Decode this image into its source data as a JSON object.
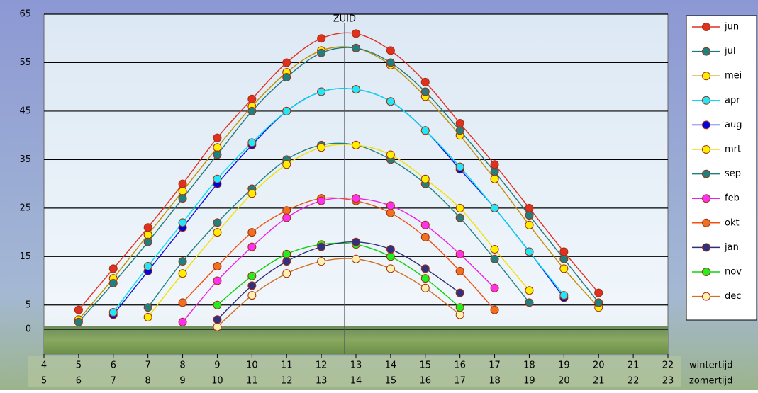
{
  "chart_data": {
    "type": "line",
    "x": [
      5,
      6,
      7,
      8,
      9,
      10,
      11,
      12,
      13,
      14,
      15,
      16,
      17,
      18,
      19,
      20
    ],
    "series": [
      {
        "name": "jun",
        "color": "#e03020",
        "marker": "#e03020",
        "values": [
          4,
          12.5,
          21,
          30,
          39.5,
          47.5,
          55,
          60,
          61,
          57.5,
          51,
          42.5,
          34,
          25,
          16,
          7.5
        ]
      },
      {
        "name": "jul",
        "color": "#207878",
        "marker": "#208080",
        "values": [
          1.5,
          9.5,
          18,
          27,
          36,
          45,
          52,
          57,
          58,
          55,
          49,
          41,
          32.5,
          23.5,
          14.5,
          5.5
        ]
      },
      {
        "name": "mei",
        "color": "#c09000",
        "marker": "#ffee00",
        "values": [
          2,
          10.5,
          19.5,
          28.5,
          37.5,
          46,
          53,
          57.5,
          58,
          54.5,
          48,
          40,
          31,
          21.5,
          12.5,
          4.5
        ]
      },
      {
        "name": "apr",
        "color": "#00e0f0",
        "marker": "#20e8f8",
        "values": [
          null,
          3.5,
          13,
          22,
          31,
          38.5,
          45,
          49,
          49.5,
          47,
          41,
          33.5,
          25,
          16,
          7,
          null
        ]
      },
      {
        "name": "aug",
        "color": "#1010e0",
        "marker": "#0000e0",
        "values": [
          null,
          3,
          12,
          21,
          30,
          38,
          45,
          49,
          49.5,
          47,
          41,
          33,
          25,
          16,
          6.5,
          null
        ]
      },
      {
        "name": "mrt",
        "color": "#f0e000",
        "marker": "#ffee00",
        "values": [
          null,
          null,
          2.5,
          11.5,
          20,
          28,
          34,
          37.5,
          38,
          36,
          31,
          25,
          16.5,
          8,
          null,
          null
        ]
      },
      {
        "name": "sep",
        "color": "#208080",
        "marker": "#208080",
        "values": [
          null,
          null,
          4.5,
          14,
          22,
          29,
          35,
          38,
          38,
          35,
          30,
          23,
          14.5,
          5.5,
          null,
          null
        ]
      },
      {
        "name": "feb",
        "color": "#f020e0",
        "marker": "#ff30f0",
        "values": [
          null,
          null,
          null,
          1.5,
          10,
          17,
          23,
          26.5,
          27,
          25.5,
          21.5,
          15.5,
          8.5,
          null,
          null,
          null
        ]
      },
      {
        "name": "okt",
        "color": "#f05010",
        "marker": "#f07020",
        "values": [
          null,
          null,
          null,
          5.5,
          13,
          20,
          24.5,
          27,
          26.5,
          24,
          19,
          12,
          4,
          null,
          null,
          null
        ]
      },
      {
        "name": "jan",
        "color": "#303070",
        "marker": "#303080",
        "values": [
          null,
          null,
          null,
          null,
          2,
          9,
          14,
          17,
          18,
          16.5,
          12.5,
          7.5,
          null,
          null,
          null,
          null
        ]
      },
      {
        "name": "nov",
        "color": "#10d010",
        "marker": "#20f020",
        "values": [
          null,
          null,
          null,
          null,
          5,
          11,
          15.5,
          17.5,
          17.5,
          15,
          10.5,
          4.5,
          null,
          null,
          null,
          null
        ]
      },
      {
        "name": "dec",
        "color": "#d07020",
        "marker": "#fff0b0",
        "values": [
          null,
          null,
          null,
          null,
          0.5,
          7,
          11.5,
          14,
          14.5,
          12.5,
          8.5,
          3,
          null,
          null,
          null,
          null
        ]
      }
    ],
    "xlim": [
      4,
      22
    ],
    "ylim": [
      0,
      65
    ],
    "xticks": [
      4,
      5,
      6,
      7,
      8,
      9,
      10,
      11,
      12,
      13,
      14,
      15,
      16,
      17,
      18,
      19,
      20,
      21,
      22
    ],
    "xticks_zomertijd": [
      5,
      6,
      7,
      8,
      9,
      10,
      11,
      12,
      13,
      14,
      15,
      16,
      17,
      18,
      19,
      20,
      21,
      22,
      23
    ],
    "xlabel": "wintertijd",
    "xlabel_zomertijd": "zomertijd",
    "yticks": [
      0,
      5,
      15,
      25,
      35,
      45,
      55,
      65
    ],
    "annotation": {
      "text": "ZUID",
      "x": 12.67
    },
    "grid": true,
    "legend": "right"
  }
}
